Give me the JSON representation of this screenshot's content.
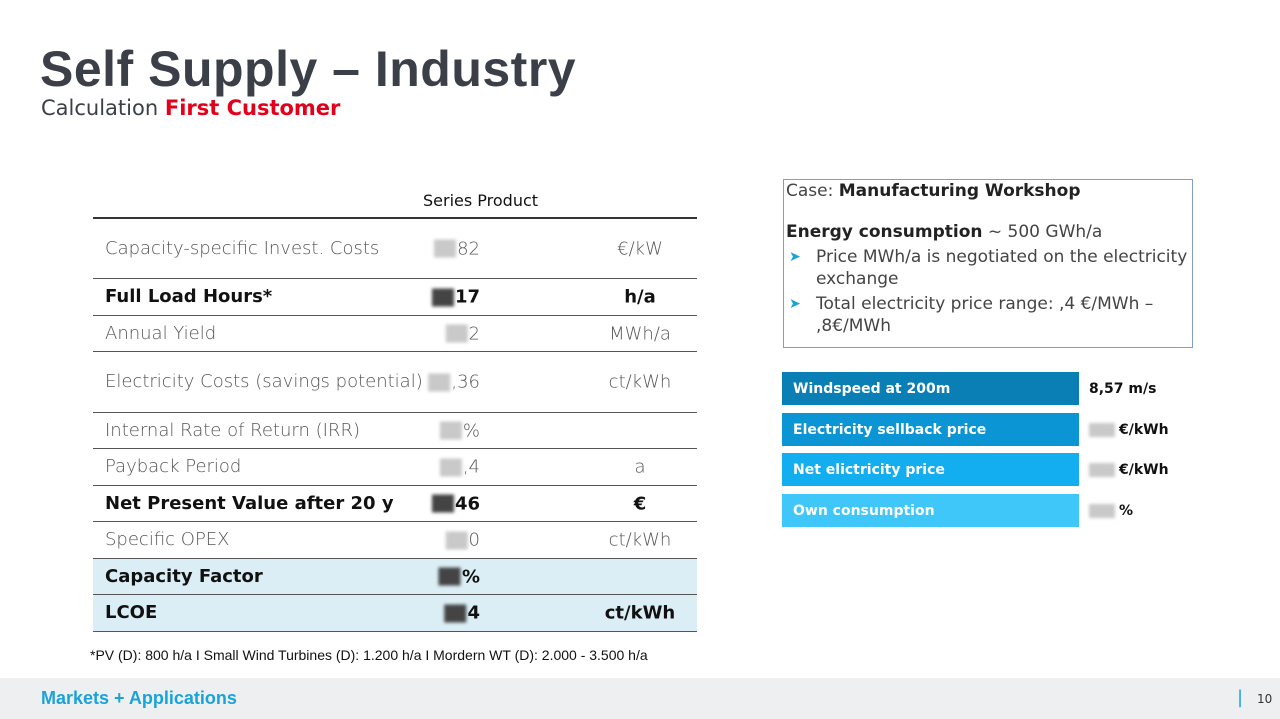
{
  "header": {
    "title": "Self Supply – Industry",
    "subtitle_prefix": "Calculation",
    "subtitle_highlight": "First Customer"
  },
  "table": {
    "column_header": "Series Product",
    "rows": [
      {
        "label": "Capacity-specific Invest. Costs",
        "value": "82",
        "unit": "€/kW"
      },
      {
        "label": "Full Load Hours*",
        "value": "17",
        "unit": "h/a"
      },
      {
        "label": "Annual Yield",
        "value": "2",
        "unit": "MWh/a"
      },
      {
        "label": "Electricity Costs (savings potential)",
        "value": ",36",
        "unit": "ct/kWh"
      },
      {
        "label": "Internal Rate of Return (IRR)",
        "value": "%",
        "unit": ""
      },
      {
        "label": "Payback Period",
        "value": ",4",
        "unit": "a"
      },
      {
        "label": "Net Present Value after 20 y",
        "value": "46",
        "unit": "€"
      },
      {
        "label": "Specific OPEX",
        "value": "0",
        "unit": "ct/kWh"
      },
      {
        "label": "Capacity Factor",
        "value": "%",
        "unit": ""
      },
      {
        "label": "LCOE",
        "value": "4",
        "unit": "ct/kWh"
      }
    ]
  },
  "footnote": "*PV (D): 800 h/a I Small Wind Turbines (D): 1.200 h/a  I  Mordern WT (D): 2.000 - 3.500 h/a",
  "case": {
    "prefix": "Case:",
    "name": "Manufacturing Workshop",
    "energy_label": "Energy consumption",
    "energy_value": "~ 500 GWh/a",
    "bullets": [
      "Price MWh/a is negotiated on the electricity exchange",
      "Total electricity price range: ,4 €/MWh – ,8€/MWh"
    ]
  },
  "metrics": [
    {
      "label": "Windspeed at 200m",
      "value": "8,57 m/s",
      "color": "#0a7fb5"
    },
    {
      "label": "Electricity sellback price",
      "value": "€/kWh",
      "color": "#0b95d4"
    },
    {
      "label": "Net elictricity price",
      "value": "€/kWh",
      "color": "#12aef0"
    },
    {
      "label": "Own consumption",
      "value": "%",
      "color": "#3ec7f8"
    }
  ],
  "footer": {
    "brand": "Markets + Applications",
    "separator": "|",
    "page": "10"
  }
}
